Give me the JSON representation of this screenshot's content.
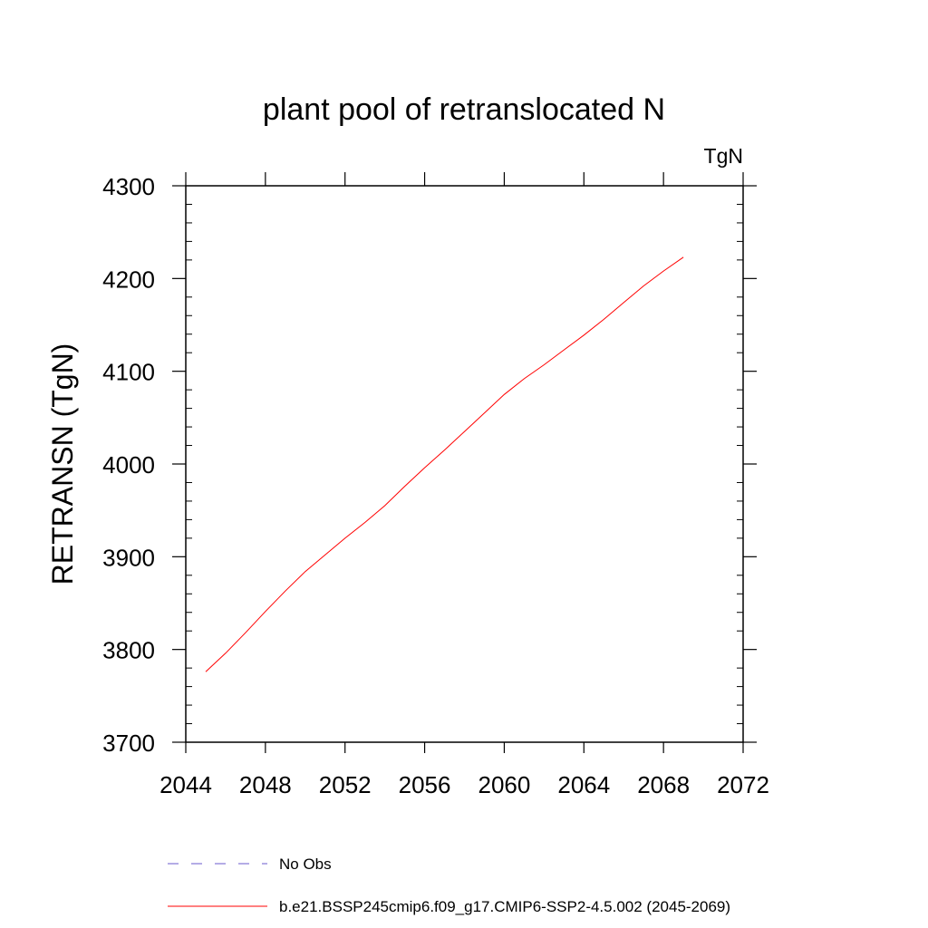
{
  "chart_data": {
    "type": "line",
    "title": "plant pool of retranslocated N",
    "units": "TgN",
    "xlabel": "",
    "ylabel": "RETRANSN  (TgN)",
    "xlim": [
      2044,
      2072
    ],
    "ylim": [
      3700,
      4300
    ],
    "x_ticks": [
      2044,
      2048,
      2052,
      2056,
      2060,
      2064,
      2068,
      2072
    ],
    "y_ticks": [
      3700,
      3800,
      3900,
      4000,
      4100,
      4200,
      4300
    ],
    "grid": false,
    "legend_position": "bottom",
    "series": [
      {
        "name": "No Obs",
        "color": "#6a5acd",
        "dash": "dashed",
        "x": [],
        "y": []
      },
      {
        "name": "b.e21.BSSP245cmip6.f09_g17.CMIP6-SSP2-4.5.002 (2045-2069)",
        "color": "#ff0000",
        "dash": "solid",
        "x": [
          2045,
          2046,
          2047,
          2048,
          2049,
          2050,
          2051,
          2052,
          2053,
          2054,
          2055,
          2056,
          2057,
          2058,
          2059,
          2060,
          2061,
          2062,
          2063,
          2064,
          2065,
          2066,
          2067,
          2068,
          2069
        ],
        "y": [
          3776,
          3796,
          3818,
          3841,
          3863,
          3884,
          3902,
          3920,
          3937,
          3955,
          3976,
          3996,
          4015,
          4035,
          4055,
          4075,
          4092,
          4107,
          4123,
          4139,
          4156,
          4174,
          4192,
          4208,
          4223
        ]
      }
    ]
  }
}
